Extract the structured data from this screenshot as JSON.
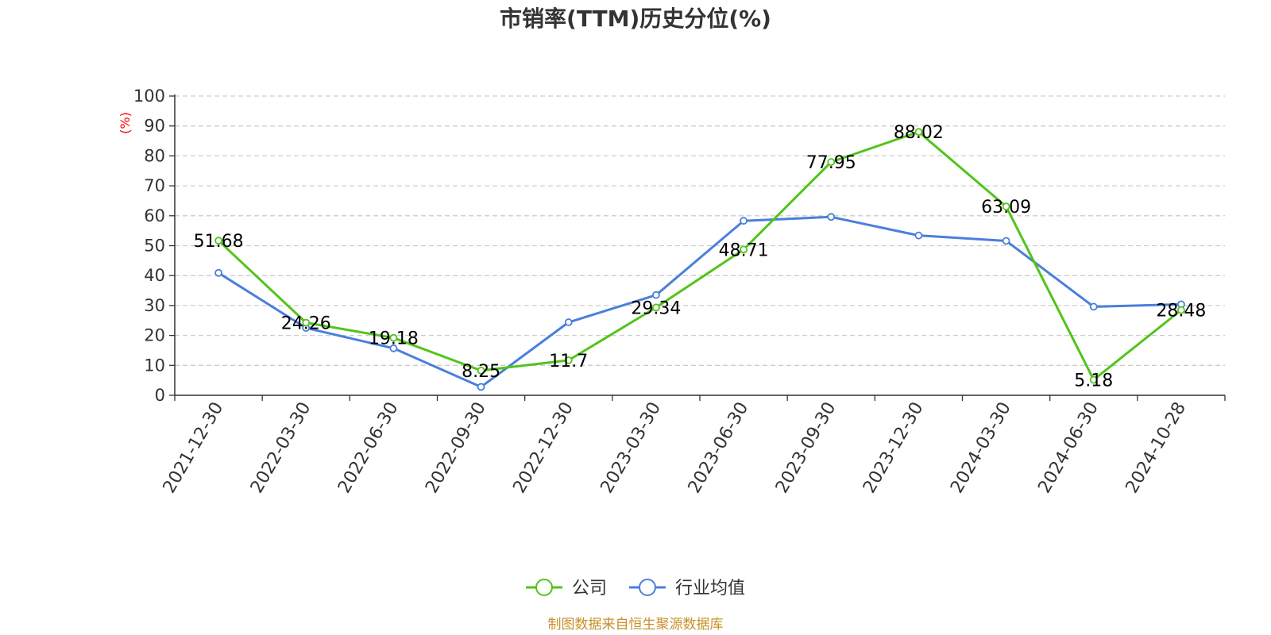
{
  "chart_data": {
    "type": "line",
    "title": "市销率(TTM)历史分位(%)",
    "ylabel": "(%)",
    "xlabel": "",
    "ylim": [
      0,
      100
    ],
    "yticks": [
      0,
      10,
      20,
      30,
      40,
      50,
      60,
      70,
      80,
      90,
      100
    ],
    "grid": "horizontal-dashed",
    "legend_position": "bottom-center",
    "categories": [
      "2021-12-30",
      "2022-03-30",
      "2022-06-30",
      "2022-09-30",
      "2022-12-30",
      "2023-03-30",
      "2023-06-30",
      "2023-09-30",
      "2023-12-30",
      "2024-03-30",
      "2024-06-30",
      "2024-10-28"
    ],
    "series": [
      {
        "name": "公司",
        "color": "#52c41a",
        "values": [
          51.68,
          24.26,
          19.18,
          8.25,
          11.7,
          29.34,
          48.71,
          77.95,
          88.02,
          63.09,
          5.18,
          28.48
        ],
        "labels": [
          "51.68",
          "24.26",
          "19.18",
          "8.25",
          "11.7",
          "29.34",
          "48.71",
          "77.95",
          "88.02",
          "63.09",
          "5.18",
          "28.48"
        ]
      },
      {
        "name": "行业均值",
        "color": "#4a7fdc",
        "values": [
          40.9,
          22.5,
          15.7,
          2.8,
          24.4,
          33.5,
          58.3,
          59.6,
          53.4,
          51.6,
          29.6,
          30.4
        ]
      }
    ],
    "source": "制图数据来自恒生聚源数据库",
    "source_color": "#c8902a",
    "ylabel_color": "#ff0000"
  }
}
